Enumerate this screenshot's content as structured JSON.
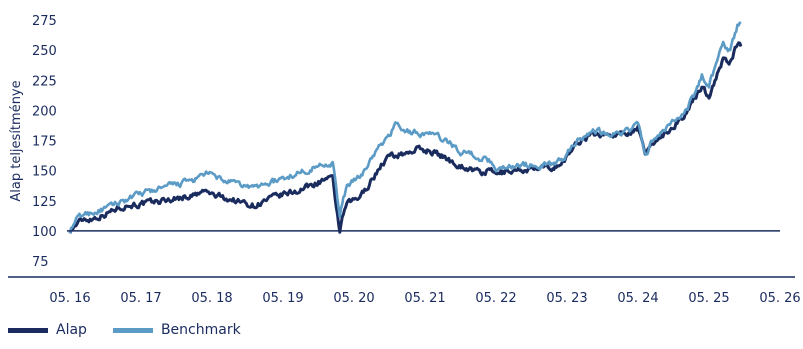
{
  "chart_data": {
    "type": "line",
    "ylabel": "Alap teljesítménye",
    "ylim": [
      75,
      275
    ],
    "yticks": [
      75,
      100,
      125,
      150,
      175,
      200,
      225,
      250,
      275
    ],
    "xticks": [
      "05. 16",
      "05. 17",
      "05. 18",
      "05. 19",
      "05. 20",
      "05. 21",
      "05. 22",
      "05. 23",
      "05. 24",
      "05. 25",
      "05. 26"
    ],
    "x_range": [
      "05. 16",
      "05. 26"
    ],
    "baseline": 100,
    "series": [
      {
        "name": "Alap",
        "color": "#1a2b5e",
        "points": [
          [
            0,
            100
          ],
          [
            0.1,
            106
          ],
          [
            0.2,
            110
          ],
          [
            0.3,
            110
          ],
          [
            0.5,
            114
          ],
          [
            0.7,
            120
          ],
          [
            0.9,
            122
          ],
          [
            1.0,
            122
          ],
          [
            1.2,
            124
          ],
          [
            1.4,
            126
          ],
          [
            1.6,
            128
          ],
          [
            1.8,
            130
          ],
          [
            1.9,
            133
          ],
          [
            2.0,
            130
          ],
          [
            2.2,
            127
          ],
          [
            2.4,
            124
          ],
          [
            2.6,
            121
          ],
          [
            2.8,
            126
          ],
          [
            3.0,
            130
          ],
          [
            3.2,
            133
          ],
          [
            3.4,
            138
          ],
          [
            3.6,
            143
          ],
          [
            3.7,
            142
          ],
          [
            3.75,
            120
          ],
          [
            3.8,
            100
          ],
          [
            3.85,
            113
          ],
          [
            3.9,
            122
          ],
          [
            4.0,
            125
          ],
          [
            4.1,
            129
          ],
          [
            4.2,
            138
          ],
          [
            4.3,
            147
          ],
          [
            4.4,
            156
          ],
          [
            4.5,
            162
          ],
          [
            4.7,
            164
          ],
          [
            4.9,
            168
          ],
          [
            5.1,
            166
          ],
          [
            5.3,
            160
          ],
          [
            5.5,
            154
          ],
          [
            5.7,
            150
          ],
          [
            5.8,
            148
          ],
          [
            5.9,
            150
          ],
          [
            6.0,
            147
          ],
          [
            6.2,
            150
          ],
          [
            6.4,
            151
          ],
          [
            6.6,
            151
          ],
          [
            6.8,
            153
          ],
          [
            6.95,
            157
          ],
          [
            7.05,
            166
          ],
          [
            7.15,
            174
          ],
          [
            7.35,
            180
          ],
          [
            7.5,
            180
          ],
          [
            7.7,
            180
          ],
          [
            7.9,
            183
          ],
          [
            8.0,
            186
          ],
          [
            8.1,
            162
          ],
          [
            8.2,
            173
          ],
          [
            8.3,
            177
          ],
          [
            8.5,
            187
          ],
          [
            8.6,
            193
          ],
          [
            8.7,
            199
          ],
          [
            8.8,
            210
          ],
          [
            8.9,
            220
          ],
          [
            9.0,
            212
          ],
          [
            9.1,
            227
          ],
          [
            9.2,
            242
          ],
          [
            9.3,
            240
          ],
          [
            9.4,
            256
          ],
          [
            9.45,
            253
          ]
        ]
      },
      {
        "name": "Benchmark",
        "color": "#5b9bc6",
        "points": [
          [
            0,
            100
          ],
          [
            0.1,
            110
          ],
          [
            0.2,
            114
          ],
          [
            0.3,
            115
          ],
          [
            0.5,
            118
          ],
          [
            0.7,
            124
          ],
          [
            0.9,
            128
          ],
          [
            1.0,
            131
          ],
          [
            1.2,
            134
          ],
          [
            1.4,
            137
          ],
          [
            1.6,
            140
          ],
          [
            1.8,
            143
          ],
          [
            1.9,
            148
          ],
          [
            2.0,
            146
          ],
          [
            2.2,
            141
          ],
          [
            2.4,
            138
          ],
          [
            2.6,
            136
          ],
          [
            2.8,
            140
          ],
          [
            3.0,
            143
          ],
          [
            3.2,
            148
          ],
          [
            3.4,
            152
          ],
          [
            3.6,
            156
          ],
          [
            3.7,
            157
          ],
          [
            3.75,
            135
          ],
          [
            3.8,
            112
          ],
          [
            3.85,
            126
          ],
          [
            3.9,
            137
          ],
          [
            4.0,
            141
          ],
          [
            4.1,
            146
          ],
          [
            4.2,
            156
          ],
          [
            4.3,
            165
          ],
          [
            4.4,
            172
          ],
          [
            4.5,
            180
          ],
          [
            4.6,
            190
          ],
          [
            4.7,
            183
          ],
          [
            4.9,
            181
          ],
          [
            5.1,
            180
          ],
          [
            5.3,
            175
          ],
          [
            5.5,
            166
          ],
          [
            5.7,
            163
          ],
          [
            5.8,
            160
          ],
          [
            5.9,
            158
          ],
          [
            6.0,
            152
          ],
          [
            6.2,
            154
          ],
          [
            6.4,
            155
          ],
          [
            6.6,
            154
          ],
          [
            6.8,
            155
          ],
          [
            6.95,
            160
          ],
          [
            7.05,
            168
          ],
          [
            7.15,
            176
          ],
          [
            7.35,
            183
          ],
          [
            7.5,
            182
          ],
          [
            7.7,
            181
          ],
          [
            7.9,
            184
          ],
          [
            8.0,
            190
          ],
          [
            8.1,
            162
          ],
          [
            8.2,
            175
          ],
          [
            8.3,
            180
          ],
          [
            8.5,
            190
          ],
          [
            8.6,
            196
          ],
          [
            8.7,
            203
          ],
          [
            8.8,
            214
          ],
          [
            8.9,
            228
          ],
          [
            9.0,
            222
          ],
          [
            9.1,
            238
          ],
          [
            9.2,
            255
          ],
          [
            9.3,
            250
          ],
          [
            9.4,
            270
          ],
          [
            9.45,
            272
          ]
        ]
      }
    ],
    "grid": false,
    "legend_position": "bottom-left"
  }
}
